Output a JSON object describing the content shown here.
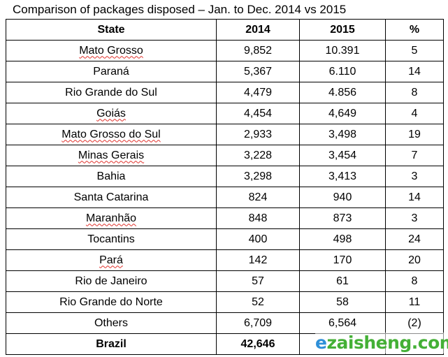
{
  "caption": "Comparison of packages disposed – Jan. to Dec. 2014 vs 2015",
  "headers": {
    "state": "State",
    "y2014": "2014",
    "y2015": "2015",
    "pct": "%"
  },
  "rows": [
    {
      "state": "Mato Grosso",
      "y2014": "9,852",
      "y2015": "10.391",
      "pct": "5"
    },
    {
      "state": "Paraná",
      "y2014": "5,367",
      "y2015": "6.110",
      "pct": "14"
    },
    {
      "state": "Rio Grande do Sul",
      "y2014": "4,479",
      "y2015": "4.856",
      "pct": "8"
    },
    {
      "state": "Goiás",
      "y2014": "4,454",
      "y2015": "4,649",
      "pct": "4"
    },
    {
      "state": "Mato Grosso do Sul",
      "y2014": "2,933",
      "y2015": "3,498",
      "pct": "19"
    },
    {
      "state": "Minas Gerais",
      "y2014": "3,228",
      "y2015": "3,454",
      "pct": "7"
    },
    {
      "state": "Bahia",
      "y2014": "3,298",
      "y2015": "3,413",
      "pct": "3"
    },
    {
      "state": "Santa Catarina",
      "y2014": "824",
      "y2015": "940",
      "pct": "14"
    },
    {
      "state": "Maranhão",
      "y2014": "848",
      "y2015": "873",
      "pct": "3"
    },
    {
      "state": "Tocantins",
      "y2014": "400",
      "y2015": "498",
      "pct": "24"
    },
    {
      "state": "Pará",
      "y2014": "142",
      "y2015": "170",
      "pct": "20"
    },
    {
      "state": "Rio de Janeiro",
      "y2014": "57",
      "y2015": "61",
      "pct": "8"
    },
    {
      "state": "Rio Grande do Norte",
      "y2014": "52",
      "y2015": "58",
      "pct": "11"
    },
    {
      "state": "Others",
      "y2014": "6,709",
      "y2015": "6,564",
      "pct": "(2)"
    }
  ],
  "total": {
    "state": "Brazil",
    "y2014": "42,646",
    "y2015": "",
    "pct": ""
  },
  "watermark": {
    "first": "e",
    "rest": "zaisheng.com"
  }
}
